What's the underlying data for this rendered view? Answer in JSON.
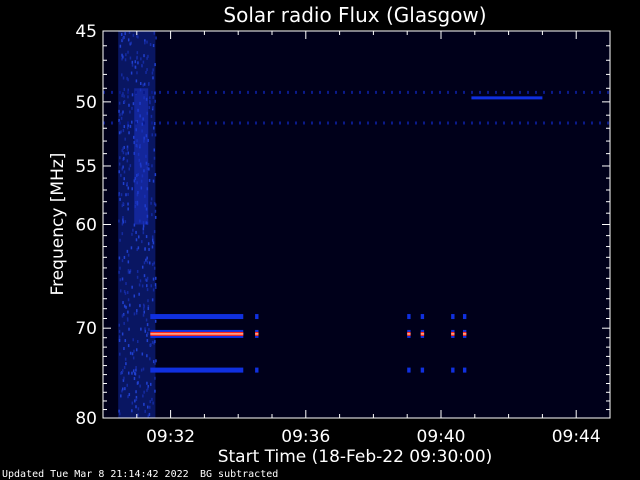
{
  "chart_data": {
    "type": "heatmap",
    "title": "Solar radio Flux (Glasgow)",
    "xlabel": "Start Time (18-Feb-22 09:30:00)",
    "ylabel": "Frequency [MHz]",
    "x_unit": "minutes after 09:30:00",
    "xlim": [
      0,
      15
    ],
    "ylim": [
      45,
      80
    ],
    "y_axis_inverted": true,
    "y_scale": "log",
    "x_ticks": [
      {
        "value": 2,
        "label": "09:32"
      },
      {
        "value": 6,
        "label": "09:36"
      },
      {
        "value": 10,
        "label": "09:40"
      },
      {
        "value": 14,
        "label": "09:44"
      }
    ],
    "y_ticks": [
      {
        "value": 45,
        "label": "45"
      },
      {
        "value": 50,
        "label": "50"
      },
      {
        "value": 55,
        "label": "55"
      },
      {
        "value": 60,
        "label": "60"
      },
      {
        "value": 70,
        "label": "70"
      },
      {
        "value": 80,
        "label": "80"
      }
    ],
    "colors": {
      "background": "#000000",
      "plot_background": "#00001a",
      "low_intensity": "#0a1a8a",
      "medium_intensity": "#1030e0",
      "high_intensity": "#ff2a1a",
      "axes": "#ffffff"
    },
    "broadband_noise": {
      "x_start": 0.45,
      "x_end": 1.55,
      "y_start": 45,
      "y_end": 80
    },
    "emission_bands": [
      {
        "y": 68.8,
        "intensity": "medium",
        "segments": [
          [
            1.4,
            4.15
          ],
          [
            4.5,
            4.6
          ],
          [
            9.0,
            9.1
          ],
          [
            9.4,
            9.5
          ],
          [
            10.3,
            10.4
          ],
          [
            10.65,
            10.75
          ]
        ]
      },
      {
        "y": 70.6,
        "intensity": "high",
        "segments": [
          [
            1.4,
            4.15
          ],
          [
            4.5,
            4.6
          ],
          [
            9.0,
            9.1
          ],
          [
            9.4,
            9.5
          ],
          [
            10.3,
            10.4
          ],
          [
            10.65,
            10.75
          ]
        ]
      },
      {
        "y": 74.5,
        "intensity": "medium",
        "segments": [
          [
            1.4,
            4.15
          ],
          [
            4.5,
            4.6
          ],
          [
            9.0,
            9.1
          ],
          [
            9.4,
            9.5
          ],
          [
            10.3,
            10.4
          ],
          [
            10.65,
            10.75
          ]
        ]
      }
    ],
    "interference_lines": [
      {
        "y": 49.3,
        "x_start": 0.0,
        "x_end": 15.0,
        "intensity": "low"
      },
      {
        "y": 49.7,
        "x_start": 10.9,
        "x_end": 13.0,
        "intensity": "medium"
      },
      {
        "y": 51.6,
        "x_start": 0.0,
        "x_end": 15.0,
        "intensity": "low"
      }
    ]
  },
  "footer": {
    "updated": "Updated Tue Mar  8 21:14:42 2022",
    "note": "BG subtracted"
  }
}
